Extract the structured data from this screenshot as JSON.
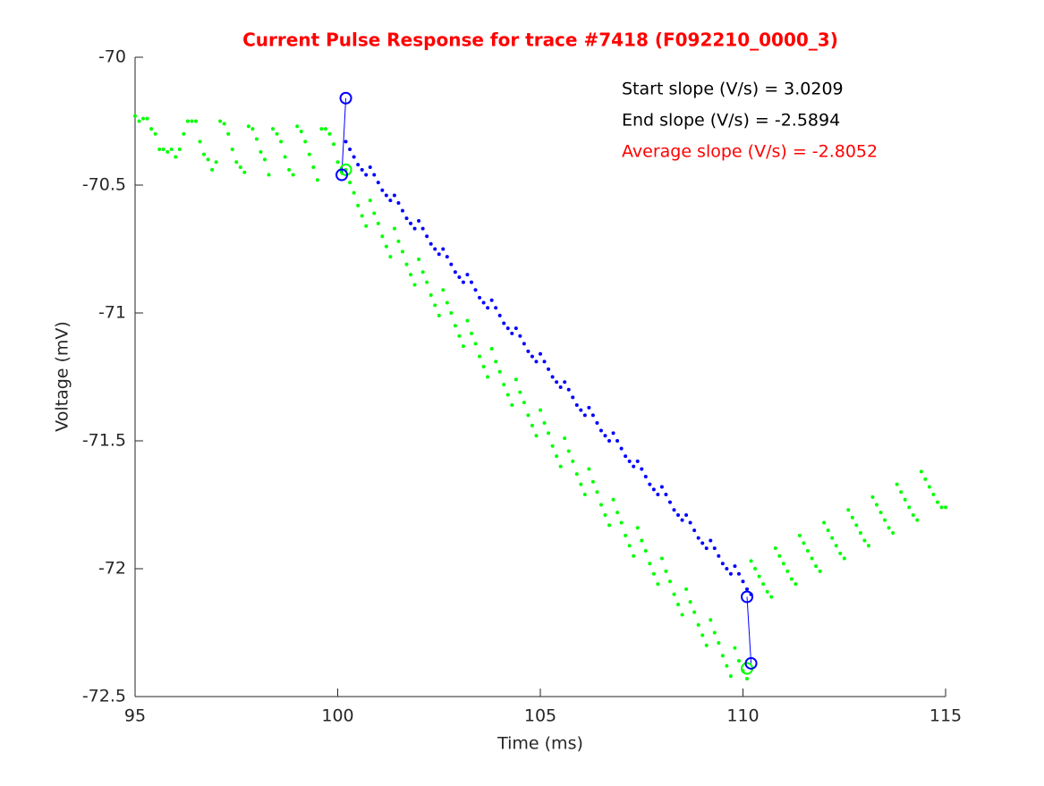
{
  "chart_data": {
    "type": "scatter",
    "title": "Current Pulse Response for trace #7418 (F092210_0000_3)",
    "title_color": "#ff0000",
    "x_label": "Time (ms)",
    "y_label": "Voltage (mV)",
    "xlim": [
      95,
      115
    ],
    "ylim": [
      -72.5,
      -70
    ],
    "xticks": [
      95,
      100,
      105,
      110,
      115
    ],
    "yticks": [
      -70,
      -70.5,
      -71,
      -71.5,
      -72,
      -72.5
    ],
    "grid": false,
    "annotations": [
      {
        "text": "Start slope (V/s) = 3.0209",
        "color": "#000000"
      },
      {
        "text": "End slope (V/s) = -2.5894",
        "color": "#000000"
      },
      {
        "text": "Average slope (V/s) = -2.8052",
        "color": "#ff0000"
      }
    ],
    "series": [
      {
        "style": "dot",
        "color": "#00ff00",
        "x": [
          95.0,
          95.1,
          95.2,
          95.3,
          95.4,
          95.5,
          95.6,
          95.7,
          95.8,
          95.9,
          96.0,
          96.1,
          96.2,
          96.3,
          96.4,
          96.5,
          96.6,
          96.7,
          96.8,
          96.9,
          97.0,
          97.1,
          97.2,
          97.3,
          97.4,
          97.5,
          97.6,
          97.7,
          97.8,
          97.9,
          98.0,
          98.1,
          98.2,
          98.3,
          98.4,
          98.5,
          98.6,
          98.7,
          98.8,
          98.9,
          99.0,
          99.1,
          99.2,
          99.3,
          99.4,
          99.5,
          99.6,
          99.7,
          99.8,
          99.9,
          100.0,
          100.1,
          100.2,
          100.3,
          100.4,
          100.5,
          100.6,
          100.7,
          100.8,
          100.9,
          101.0,
          101.1,
          101.2,
          101.3,
          101.4,
          101.5,
          101.6,
          101.7,
          101.8,
          101.9,
          102.0,
          102.1,
          102.2,
          102.3,
          102.4,
          102.5,
          102.6,
          102.7,
          102.8,
          102.9,
          103.0,
          103.1,
          103.2,
          103.3,
          103.4,
          103.5,
          103.6,
          103.7,
          103.8,
          103.9,
          104.0,
          104.1,
          104.2,
          104.3,
          104.4,
          104.5,
          104.6,
          104.7,
          104.8,
          104.9,
          105.0,
          105.1,
          105.2,
          105.3,
          105.4,
          105.5,
          105.6,
          105.7,
          105.8,
          105.9,
          106.0,
          106.1,
          106.2,
          106.3,
          106.4,
          106.5,
          106.6,
          106.7,
          106.8,
          106.9,
          107.0,
          107.1,
          107.2,
          107.3,
          107.4,
          107.5,
          107.6,
          107.7,
          107.8,
          107.9,
          108.0,
          108.1,
          108.2,
          108.3,
          108.4,
          108.5,
          108.6,
          108.7,
          108.8,
          108.9,
          109.0,
          109.1,
          109.2,
          109.3,
          109.4,
          109.5,
          109.6,
          109.7,
          109.8,
          109.9,
          110.0,
          110.1,
          110.2,
          110.3,
          110.4,
          110.5,
          110.6,
          110.7,
          110.8,
          110.9,
          111.0,
          111.1,
          111.2,
          111.3,
          111.4,
          111.5,
          111.6,
          111.7,
          111.8,
          111.9,
          112.0,
          112.1,
          112.2,
          112.3,
          112.4,
          112.5,
          112.6,
          112.7,
          112.8,
          112.9,
          113.0,
          113.1,
          113.2,
          113.3,
          113.4,
          113.5,
          113.6,
          113.7,
          113.8,
          113.9,
          114.0,
          114.1,
          114.2,
          114.3,
          114.4,
          114.5,
          114.6,
          114.7,
          114.8,
          114.9,
          115.0
        ],
        "values": [
          -70.23,
          -70.25,
          -70.24,
          -70.24,
          -70.28,
          -70.3,
          -70.36,
          -70.36,
          -70.37,
          -70.36,
          -70.39,
          -70.36,
          -70.3,
          -70.25,
          -70.25,
          -70.25,
          -70.33,
          -70.38,
          -70.4,
          -70.44,
          -70.41,
          -70.25,
          -70.26,
          -70.3,
          -70.36,
          -70.41,
          -70.43,
          -70.45,
          -70.27,
          -70.28,
          -70.32,
          -70.37,
          -70.4,
          -70.46,
          -70.28,
          -70.3,
          -70.33,
          -70.39,
          -70.44,
          -70.46,
          -70.27,
          -70.29,
          -70.33,
          -70.38,
          -70.43,
          -70.48,
          -70.28,
          -70.28,
          -70.3,
          -70.34,
          -70.41,
          -70.45,
          -70.44,
          -70.49,
          -70.53,
          -70.58,
          -70.62,
          -70.66,
          -70.56,
          -70.61,
          -70.65,
          -70.7,
          -70.74,
          -70.78,
          -70.67,
          -70.72,
          -70.76,
          -70.81,
          -70.85,
          -70.89,
          -70.79,
          -70.84,
          -70.88,
          -70.93,
          -70.97,
          -71.01,
          -70.91,
          -70.96,
          -71.0,
          -71.05,
          -71.09,
          -71.13,
          -71.03,
          -71.08,
          -71.12,
          -71.17,
          -71.21,
          -71.25,
          -71.14,
          -71.19,
          -71.23,
          -71.28,
          -71.32,
          -71.36,
          -71.26,
          -71.31,
          -71.35,
          -71.4,
          -71.44,
          -71.48,
          -71.38,
          -71.43,
          -71.47,
          -71.52,
          -71.56,
          -71.6,
          -71.49,
          -71.54,
          -71.58,
          -71.63,
          -71.67,
          -71.71,
          -71.61,
          -71.66,
          -71.7,
          -71.75,
          -71.79,
          -71.83,
          -71.73,
          -71.78,
          -71.82,
          -71.87,
          -71.91,
          -71.95,
          -71.84,
          -71.89,
          -71.93,
          -71.98,
          -72.02,
          -72.06,
          -71.96,
          -72.01,
          -72.05,
          -72.1,
          -72.14,
          -72.18,
          -72.08,
          -72.13,
          -72.17,
          -72.22,
          -72.26,
          -72.3,
          -72.2,
          -72.25,
          -72.29,
          -72.34,
          -72.38,
          -72.42,
          -72.31,
          -72.36,
          -72.4,
          -72.43,
          -71.97,
          -72.0,
          -72.03,
          -72.06,
          -72.09,
          -72.11,
          -71.92,
          -71.95,
          -71.98,
          -72.01,
          -72.04,
          -72.06,
          -71.87,
          -71.9,
          -71.93,
          -71.96,
          -71.99,
          -72.01,
          -71.82,
          -71.85,
          -71.88,
          -71.91,
          -71.94,
          -71.96,
          -71.77,
          -71.8,
          -71.83,
          -71.86,
          -71.89,
          -71.91,
          -71.72,
          -71.75,
          -71.78,
          -71.81,
          -71.84,
          -71.86,
          -71.67,
          -71.7,
          -71.73,
          -71.76,
          -71.79,
          -71.81,
          -71.62,
          -71.65,
          -71.68,
          -71.71,
          -71.74,
          -71.76,
          -71.76
        ]
      },
      {
        "style": "dot",
        "color": "#0000ff",
        "x": [
          100.2,
          100.3,
          100.4,
          100.5,
          100.6,
          100.7,
          100.8,
          100.9,
          101.0,
          101.1,
          101.2,
          101.3,
          101.4,
          101.5,
          101.6,
          101.7,
          101.8,
          101.9,
          102.0,
          102.1,
          102.2,
          102.3,
          102.4,
          102.5,
          102.6,
          102.7,
          102.8,
          102.9,
          103.0,
          103.1,
          103.2,
          103.3,
          103.4,
          103.5,
          103.6,
          103.7,
          103.8,
          103.9,
          104.0,
          104.1,
          104.2,
          104.3,
          104.4,
          104.5,
          104.6,
          104.7,
          104.8,
          104.9,
          105.0,
          105.1,
          105.2,
          105.3,
          105.4,
          105.5,
          105.6,
          105.7,
          105.8,
          105.9,
          106.0,
          106.1,
          106.2,
          106.3,
          106.4,
          106.5,
          106.6,
          106.7,
          106.8,
          106.9,
          107.0,
          107.1,
          107.2,
          107.3,
          107.4,
          107.5,
          107.6,
          107.7,
          107.8,
          107.9,
          108.0,
          108.1,
          108.2,
          108.3,
          108.4,
          108.5,
          108.6,
          108.7,
          108.8,
          108.9,
          109.0,
          109.1,
          109.2,
          109.3,
          109.4,
          109.5,
          109.6,
          109.7,
          109.8,
          109.9,
          110.0,
          110.1,
          110.2
        ],
        "values": [
          -70.33,
          -70.36,
          -70.39,
          -70.42,
          -70.44,
          -70.46,
          -70.43,
          -70.46,
          -70.49,
          -70.52,
          -70.54,
          -70.56,
          -70.54,
          -70.57,
          -70.6,
          -70.63,
          -70.65,
          -70.67,
          -70.64,
          -70.67,
          -70.7,
          -70.73,
          -70.75,
          -70.77,
          -70.75,
          -70.78,
          -70.81,
          -70.84,
          -70.86,
          -70.88,
          -70.85,
          -70.88,
          -70.91,
          -70.94,
          -70.96,
          -70.98,
          -70.95,
          -70.98,
          -71.01,
          -71.04,
          -71.06,
          -71.08,
          -71.06,
          -71.09,
          -71.12,
          -71.15,
          -71.17,
          -71.19,
          -71.16,
          -71.19,
          -71.22,
          -71.25,
          -71.27,
          -71.29,
          -71.27,
          -71.3,
          -71.33,
          -71.36,
          -71.38,
          -71.4,
          -71.37,
          -71.4,
          -71.43,
          -71.46,
          -71.48,
          -71.5,
          -71.47,
          -71.5,
          -71.53,
          -71.56,
          -71.58,
          -71.6,
          -71.58,
          -71.61,
          -71.64,
          -71.67,
          -71.69,
          -71.71,
          -71.68,
          -71.71,
          -71.74,
          -71.77,
          -71.79,
          -71.81,
          -71.79,
          -71.82,
          -71.85,
          -71.88,
          -71.9,
          -71.92,
          -71.89,
          -71.92,
          -71.95,
          -71.98,
          -72.0,
          -72.02,
          -71.99,
          -72.02,
          -72.05,
          -72.08,
          -72.1
        ]
      },
      {
        "style": "line",
        "color": "#0000ff",
        "x": [
          100.1,
          100.2
        ],
        "values": [
          -70.46,
          -70.16
        ]
      },
      {
        "style": "line",
        "color": "#0000ff",
        "x": [
          110.1,
          110.2
        ],
        "values": [
          -72.11,
          -72.37
        ]
      },
      {
        "style": "circle",
        "color": "#00ff00",
        "x": [
          100.2,
          110.1
        ],
        "values": [
          -70.44,
          -72.39
        ]
      },
      {
        "style": "circle",
        "color": "#0000ff",
        "x": [
          100.1,
          100.2,
          110.1,
          110.2
        ],
        "values": [
          -70.46,
          -70.16,
          -72.11,
          -72.37
        ]
      }
    ]
  }
}
